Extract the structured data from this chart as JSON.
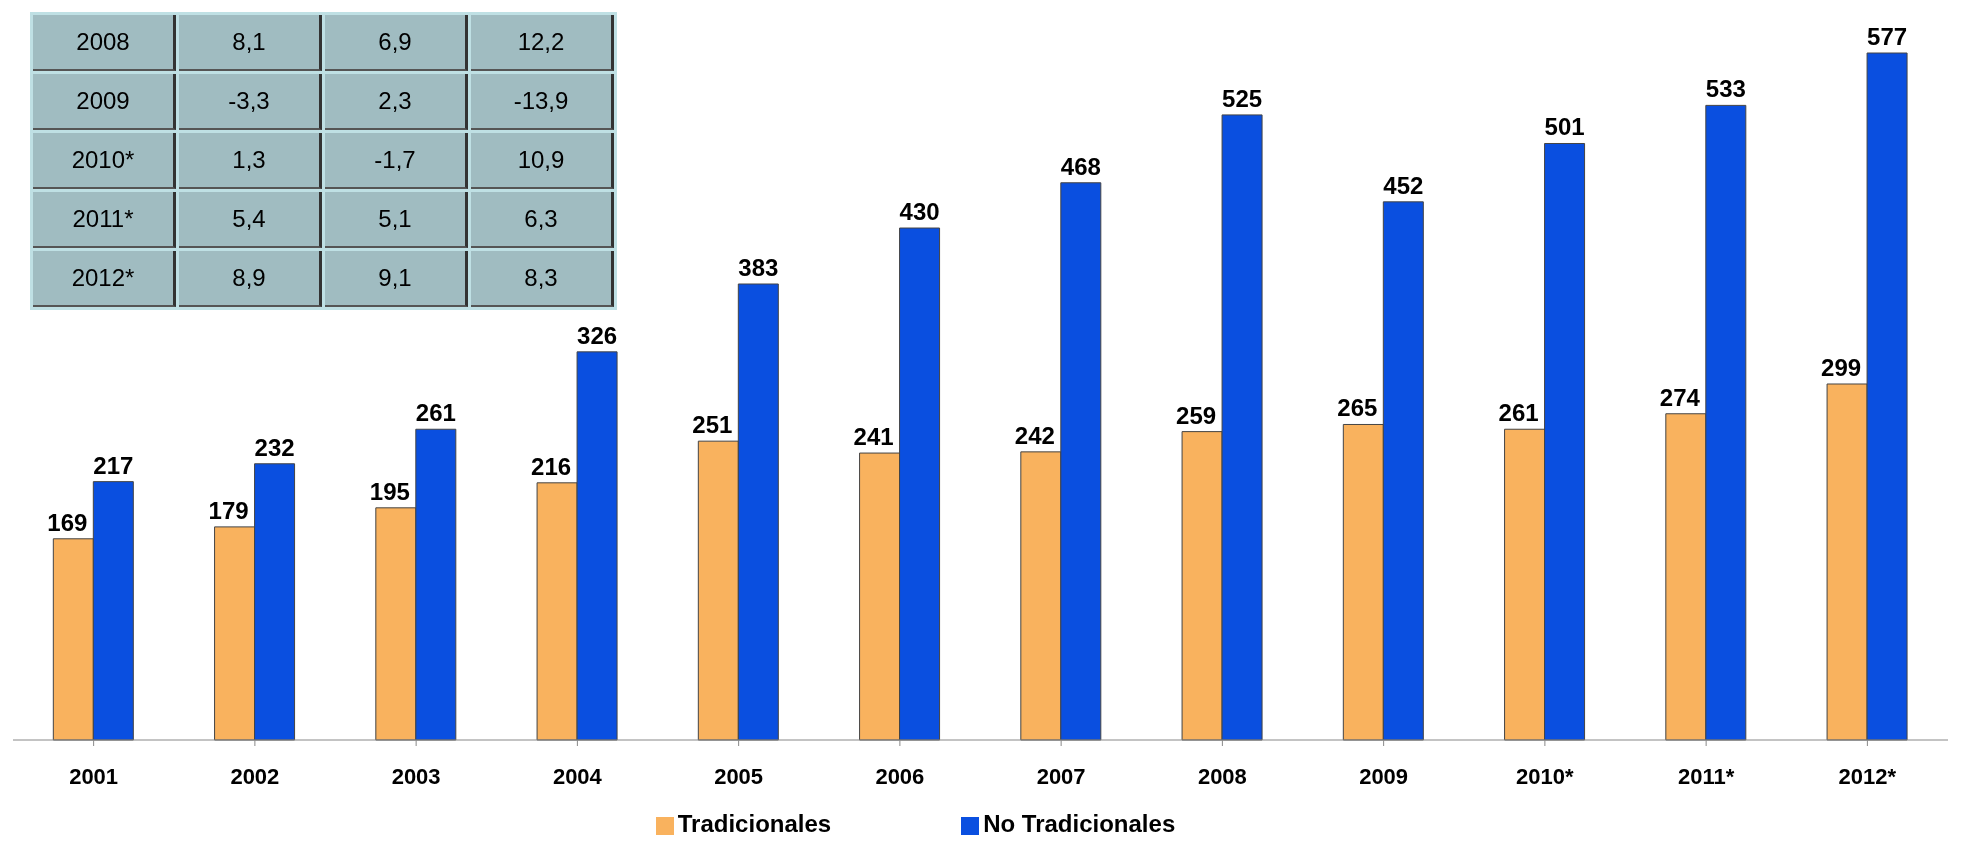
{
  "chart_data": {
    "type": "bar",
    "categories": [
      "2001",
      "2002",
      "2003",
      "2004",
      "2005",
      "2006",
      "2007",
      "2008",
      "2009",
      "2010*",
      "2011*",
      "2012*"
    ],
    "series": [
      {
        "name": "Tradicionales",
        "color": "#f9b25e",
        "values": [
          169,
          179,
          195,
          216,
          251,
          241,
          242,
          259,
          265,
          261,
          274,
          299
        ]
      },
      {
        "name": "No Tradicionales",
        "color": "#0a4fe0",
        "values": [
          217,
          232,
          261,
          326,
          383,
          430,
          468,
          525,
          452,
          501,
          533,
          577
        ]
      }
    ],
    "data_labels": true,
    "legend": "bottom",
    "grid": false,
    "annotations": [
      "2008",
      "8,1",
      "6,9",
      "12,2",
      "2009",
      "-3,3",
      "2,3",
      "-13,9",
      "2010*",
      "1,3",
      "-1,7",
      "10,9",
      "2011*",
      "5,4",
      "5,1",
      "6,3",
      "2012*",
      "8,9",
      "9,1",
      "8,3"
    ]
  }
}
